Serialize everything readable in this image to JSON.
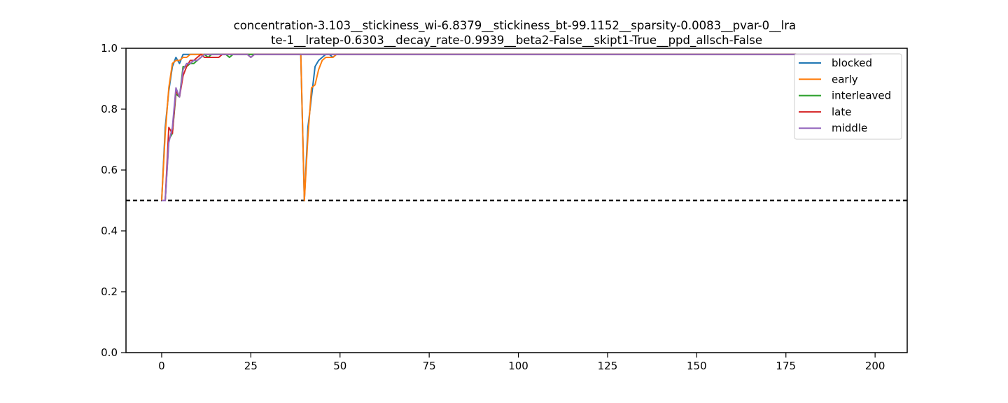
{
  "chart_data": {
    "type": "line",
    "title_lines": [
      "concentration-3.103__stickiness_wi-6.8379__stickiness_bt-99.1152__sparsity-0.0083__pvar-0__lra",
      "te-1__lratep-0.6303__decay_rate-0.9939__beta2-False__skipt1-True__ppd_allsch-False"
    ],
    "xlabel": "",
    "ylabel": "",
    "xlim": [
      -10,
      209
    ],
    "ylim": [
      0.0,
      1.0
    ],
    "xticks": [
      0,
      25,
      50,
      75,
      100,
      125,
      150,
      175,
      200
    ],
    "yticks": [
      0.0,
      0.2,
      0.4,
      0.6,
      0.8,
      1.0
    ],
    "ytick_labels": [
      "0.0",
      "0.2",
      "0.4",
      "0.6",
      "0.8",
      "1.0"
    ],
    "grid": false,
    "legend_position": "top-right",
    "reference_line": {
      "y": 0.5,
      "style": "dashed",
      "color": "#000000"
    },
    "x_max": 199,
    "plateau": 0.98,
    "series": [
      {
        "name": "blocked",
        "color": "#1f77b4",
        "points": [
          [
            0,
            0.5
          ],
          [
            1,
            0.74
          ],
          [
            2,
            0.86
          ],
          [
            3,
            0.94
          ],
          [
            4,
            0.97
          ],
          [
            5,
            0.95
          ],
          [
            6,
            0.98
          ],
          [
            7,
            0.98
          ],
          [
            12,
            0.98
          ],
          [
            39,
            0.98
          ],
          [
            40,
            0.5
          ],
          [
            41,
            0.74
          ],
          [
            42,
            0.84
          ],
          [
            43,
            0.94
          ],
          [
            44,
            0.96
          ],
          [
            45,
            0.97
          ],
          [
            46,
            0.98
          ],
          [
            47,
            0.98
          ],
          [
            48,
            0.97
          ],
          [
            49,
            0.98
          ]
        ]
      },
      {
        "name": "early",
        "color": "#ff7f0e",
        "points": [
          [
            0,
            0.5
          ],
          [
            1,
            0.72
          ],
          [
            2,
            0.87
          ],
          [
            3,
            0.95
          ],
          [
            4,
            0.96
          ],
          [
            5,
            0.96
          ],
          [
            6,
            0.97
          ],
          [
            7,
            0.97
          ],
          [
            8,
            0.98
          ],
          [
            39,
            0.98
          ],
          [
            40,
            0.5
          ],
          [
            41,
            0.71
          ],
          [
            42,
            0.87
          ],
          [
            43,
            0.88
          ],
          [
            44,
            0.93
          ],
          [
            45,
            0.96
          ],
          [
            46,
            0.97
          ],
          [
            47,
            0.97
          ],
          [
            48,
            0.97
          ],
          [
            49,
            0.98
          ]
        ]
      },
      {
        "name": "interleaved",
        "color": "#2ca02c",
        "points": [
          [
            0,
            0.5
          ],
          [
            1,
            0.5
          ],
          [
            2,
            0.7
          ],
          [
            3,
            0.72
          ],
          [
            4,
            0.85
          ],
          [
            5,
            0.84
          ],
          [
            6,
            0.94
          ],
          [
            7,
            0.94
          ],
          [
            8,
            0.95
          ],
          [
            9,
            0.95
          ],
          [
            10,
            0.96
          ],
          [
            11,
            0.97
          ],
          [
            12,
            0.98
          ],
          [
            13,
            0.97
          ],
          [
            14,
            0.98
          ],
          [
            18,
            0.98
          ],
          [
            19,
            0.97
          ],
          [
            20,
            0.98
          ],
          [
            199,
            0.98
          ]
        ]
      },
      {
        "name": "late",
        "color": "#d62728",
        "points": [
          [
            0,
            0.5
          ],
          [
            1,
            0.5
          ],
          [
            2,
            0.74
          ],
          [
            3,
            0.72
          ],
          [
            4,
            0.86
          ],
          [
            5,
            0.84
          ],
          [
            6,
            0.91
          ],
          [
            7,
            0.94
          ],
          [
            8,
            0.96
          ],
          [
            9,
            0.96
          ],
          [
            10,
            0.97
          ],
          [
            11,
            0.98
          ],
          [
            12,
            0.97
          ],
          [
            16,
            0.97
          ],
          [
            17,
            0.98
          ],
          [
            24,
            0.98
          ],
          [
            25,
            0.97
          ],
          [
            26,
            0.98
          ],
          [
            199,
            0.98
          ]
        ]
      },
      {
        "name": "middle",
        "color": "#9467bd",
        "points": [
          [
            0,
            0.5
          ],
          [
            1,
            0.5
          ],
          [
            2,
            0.69
          ],
          [
            3,
            0.74
          ],
          [
            4,
            0.87
          ],
          [
            5,
            0.84
          ],
          [
            6,
            0.93
          ],
          [
            7,
            0.95
          ],
          [
            8,
            0.95
          ],
          [
            9,
            0.96
          ],
          [
            10,
            0.96
          ],
          [
            11,
            0.97
          ],
          [
            12,
            0.98
          ],
          [
            24,
            0.98
          ],
          [
            25,
            0.97
          ],
          [
            26,
            0.98
          ],
          [
            199,
            0.98
          ]
        ]
      }
    ]
  }
}
